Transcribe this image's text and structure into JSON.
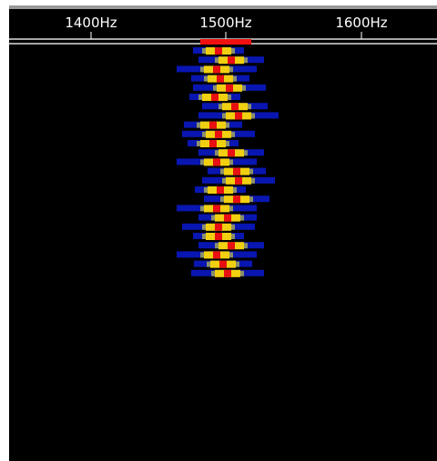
{
  "scale": {
    "ticks": [
      "1400Hz",
      "1500Hz",
      "1600Hz"
    ]
  }
}
